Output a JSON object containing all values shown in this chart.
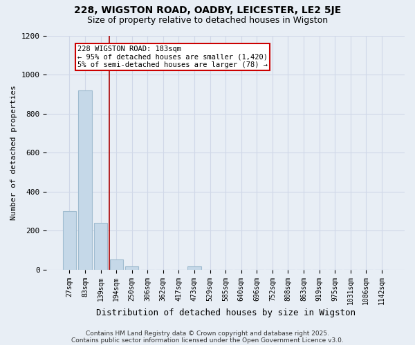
{
  "title1": "228, WIGSTON ROAD, OADBY, LEICESTER, LE2 5JE",
  "title2": "Size of property relative to detached houses in Wigston",
  "xlabel": "Distribution of detached houses by size in Wigston",
  "ylabel": "Number of detached properties",
  "categories": [
    "27sqm",
    "83sqm",
    "139sqm",
    "194sqm",
    "250sqm",
    "306sqm",
    "362sqm",
    "417sqm",
    "473sqm",
    "529sqm",
    "585sqm",
    "640sqm",
    "696sqm",
    "752sqm",
    "808sqm",
    "863sqm",
    "919sqm",
    "975sqm",
    "1031sqm",
    "1086sqm",
    "1142sqm"
  ],
  "values": [
    300,
    920,
    240,
    50,
    15,
    0,
    0,
    0,
    15,
    0,
    0,
    0,
    0,
    0,
    0,
    0,
    0,
    0,
    0,
    0,
    0
  ],
  "bar_color": "#c5d8e8",
  "bar_edgecolor": "#a0bcd0",
  "grid_color": "#d0d8e8",
  "background_color": "#e8eef5",
  "annotation_text": "228 WIGSTON ROAD: 183sqm\n← 95% of detached houses are smaller (1,420)\n5% of semi-detached houses are larger (78) →",
  "ylim": [
    0,
    1200
  ],
  "yticks": [
    0,
    200,
    400,
    600,
    800,
    1000,
    1200
  ],
  "footer1": "Contains HM Land Registry data © Crown copyright and database right 2025.",
  "footer2": "Contains public sector information licensed under the Open Government Licence v3.0."
}
